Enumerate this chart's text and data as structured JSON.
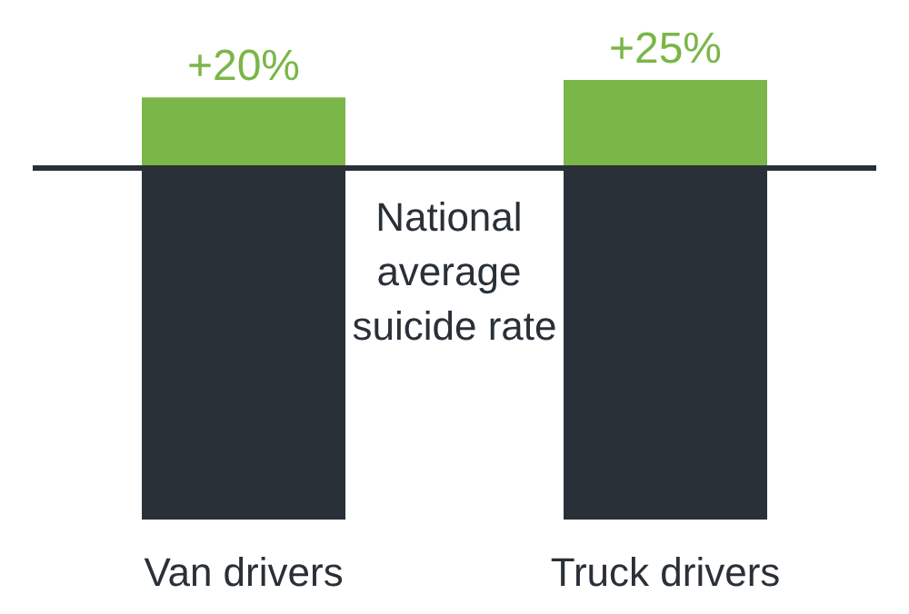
{
  "chart_data": {
    "type": "bar",
    "stacked": true,
    "tick_labels": "x",
    "categories": [
      "Van drivers",
      "Truck drivers"
    ],
    "series": [
      {
        "color": "#2a3038",
        "values": [
          100,
          100
        ]
      },
      {
        "color": "#7ab648",
        "values": [
          20,
          25
        ],
        "value_labels": [
          "+20%",
          "+25%"
        ]
      }
    ],
    "ref_lines": [
      {
        "axis": "y",
        "value": 100,
        "label": "National average suicide rate",
        "color": "#2a3038"
      }
    ]
  }
}
